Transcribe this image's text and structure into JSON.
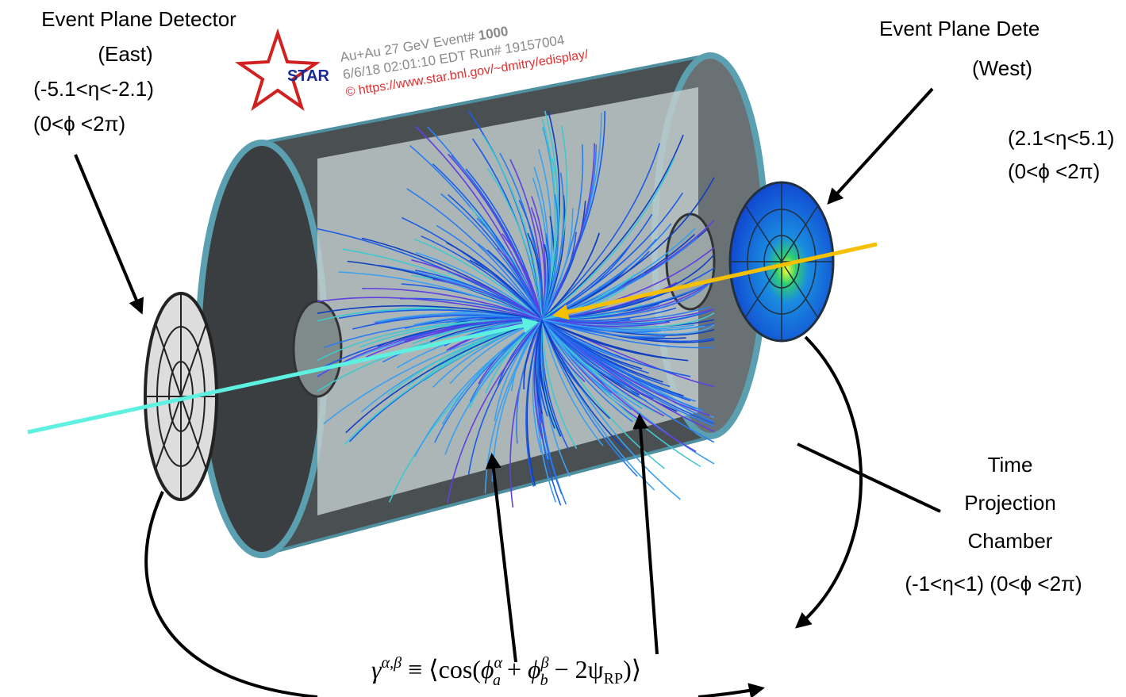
{
  "east_label": {
    "title": "Event Plane Detector",
    "side": "(East)",
    "eta": "(-5.1<η<-2.1)",
    "phi": "(0<ϕ <2π)"
  },
  "west_label": {
    "title": "Event Plane Dete",
    "side": "(West)",
    "eta": "(2.1<η<5.1)",
    "phi": "(0<ϕ <2π)"
  },
  "tpc_label": {
    "line1": "Time",
    "line2": "Projection",
    "line3": "Chamber",
    "range": "(-1<η<1) (0<ϕ <2π)"
  },
  "event_display": {
    "logo": "STAR",
    "line1": "Au+Au 27 GeV Event# ",
    "event": "1000",
    "line2": "6/6/18 02:01:10 EDT Run# 19157004",
    "credit": "© https://www.star.bnl.gov/~dmitry/edisplay/"
  },
  "formula": {
    "lhs": "γ",
    "lhs_sup": "α,β",
    "equiv": " ≡ ⟨cos(",
    "phi_a": "ϕ",
    "sub_a": "a",
    "sup_a": "α",
    "plus": " + ",
    "phi_b": "ϕ",
    "sub_b": "b",
    "sup_b": "β",
    "minus": " − 2ψ",
    "sub_rp": "RP",
    "close": ")⟩"
  }
}
